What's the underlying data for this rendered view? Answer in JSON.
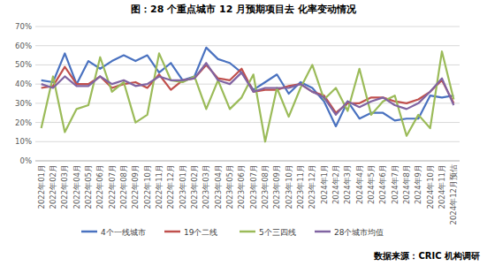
{
  "chart_data": {
    "type": "line",
    "title": "图：28 个重点城市 12 月预期项目去 化率变动情况",
    "source": "数据来源：CRIC 机构调研",
    "categories": [
      "2022年01月",
      "2022年02月",
      "2022年03月",
      "2022年04月",
      "2022年05月",
      "2022年06月",
      "2022年07月",
      "2022年08月",
      "2022年09月",
      "2022年10月",
      "2022年11月",
      "2022年12月",
      "2023年01月",
      "2023年02月",
      "2023年03月",
      "2023年04月",
      "2023年05月",
      "2023年06月",
      "2023年07月",
      "2023年08月",
      "2023年09月",
      "2023年10月",
      "2023年11月",
      "2023年12月",
      "2024年1月",
      "2024年2月",
      "2024年3月",
      "2024年4月",
      "2024年5月",
      "2024年6月",
      "2024年7月",
      "2024年8月",
      "2024年9月",
      "2024年10月",
      "2024年11月",
      "2024年12月预估"
    ],
    "series": [
      {
        "name": "4个一线城市",
        "color": "#4a72c0",
        "values": [
          42,
          41,
          56,
          40,
          52,
          48,
          52,
          55,
          52,
          55,
          46,
          51,
          42,
          44,
          59,
          53,
          51,
          46,
          37,
          41,
          45,
          35,
          41,
          38,
          31,
          18,
          31,
          22,
          25,
          25,
          21,
          22,
          22,
          34,
          33,
          34
        ]
      },
      {
        "name": "19个二线",
        "color": "#c0504d",
        "values": [
          38,
          39,
          49,
          40,
          40,
          44,
          38,
          40,
          41,
          38,
          45,
          37,
          42,
          43,
          50,
          43,
          42,
          48,
          36,
          37,
          37,
          39,
          40,
          36,
          34,
          25,
          30,
          30,
          33,
          33,
          31,
          30,
          32,
          36,
          42,
          30
        ]
      },
      {
        "name": "5个三四线",
        "color": "#9bbb59",
        "values": [
          17,
          44,
          15,
          27,
          29,
          54,
          36,
          41,
          20,
          24,
          56,
          42,
          41,
          44,
          27,
          42,
          27,
          33,
          45,
          10,
          38,
          23,
          38,
          50,
          32,
          38,
          26,
          48,
          24,
          31,
          34,
          13,
          24,
          17,
          57,
          32
        ]
      },
      {
        "name": "28个城市均值",
        "color": "#8064a2",
        "values": [
          40,
          38,
          44,
          39,
          39,
          44,
          40,
          42,
          39,
          40,
          44,
          42,
          42,
          43,
          51,
          42,
          40,
          46,
          36,
          38,
          38,
          38,
          40,
          36,
          33,
          24,
          31,
          28,
          31,
          33,
          29,
          27,
          30,
          36,
          43,
          29
        ]
      }
    ],
    "ylim": [
      0,
      70
    ],
    "yticks": [
      {
        "value": 0,
        "label": "0%"
      },
      {
        "value": 10,
        "label": "10%"
      },
      {
        "value": 20,
        "label": "20%"
      },
      {
        "value": 30,
        "label": "30%"
      },
      {
        "value": 40,
        "label": "40%"
      },
      {
        "value": 50,
        "label": "50%"
      },
      {
        "value": 60,
        "label": "60%"
      },
      {
        "value": 70,
        "label": "70%"
      }
    ],
    "grid": true,
    "legend": "bottom"
  }
}
